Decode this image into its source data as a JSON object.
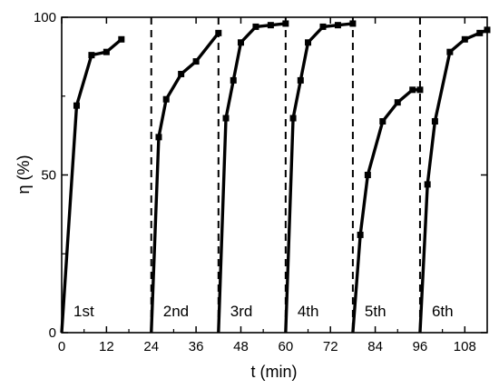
{
  "chart_data": {
    "type": "line",
    "xlabel": "t (min)",
    "ylabel": "η (%)",
    "xlim": [
      0,
      114
    ],
    "ylim": [
      0,
      100
    ],
    "x_ticks": [
      0,
      12,
      24,
      36,
      48,
      60,
      72,
      84,
      96,
      108
    ],
    "x_tick_labels": [
      "0",
      "12",
      "24",
      "36",
      "48",
      "60",
      "72",
      "84",
      "96",
      "108"
    ],
    "y_ticks": [
      0,
      50,
      100
    ],
    "y_tick_labels": [
      "0",
      "50",
      "100"
    ],
    "cycle_boundaries": [
      24,
      42,
      60,
      78,
      96
    ],
    "series": [
      {
        "label": "1st",
        "x": [
          0,
          4,
          8,
          12,
          16
        ],
        "y": [
          0,
          72,
          88,
          89,
          93
        ]
      },
      {
        "label": "2nd",
        "x": [
          24,
          26,
          28,
          32,
          36,
          42
        ],
        "y": [
          0,
          62,
          74,
          82,
          86,
          95
        ]
      },
      {
        "label": "3rd",
        "x": [
          42,
          44,
          46,
          48,
          52,
          56,
          60
        ],
        "y": [
          0,
          68,
          80,
          92,
          97,
          97.5,
          98
        ]
      },
      {
        "label": "4th",
        "x": [
          60,
          62,
          64,
          66,
          70,
          74,
          78
        ],
        "y": [
          0,
          68,
          80,
          92,
          97,
          97.5,
          98
        ]
      },
      {
        "label": "5th",
        "x": [
          78,
          80,
          82,
          86,
          90,
          94,
          96
        ],
        "y": [
          0,
          31,
          50,
          67,
          73,
          77,
          77
        ]
      },
      {
        "label": "6th",
        "x": [
          96,
          98,
          100,
          104,
          108,
          112,
          114
        ],
        "y": [
          0,
          47,
          67,
          89,
          93,
          95,
          96
        ]
      }
    ],
    "line_color": "#000000"
  }
}
